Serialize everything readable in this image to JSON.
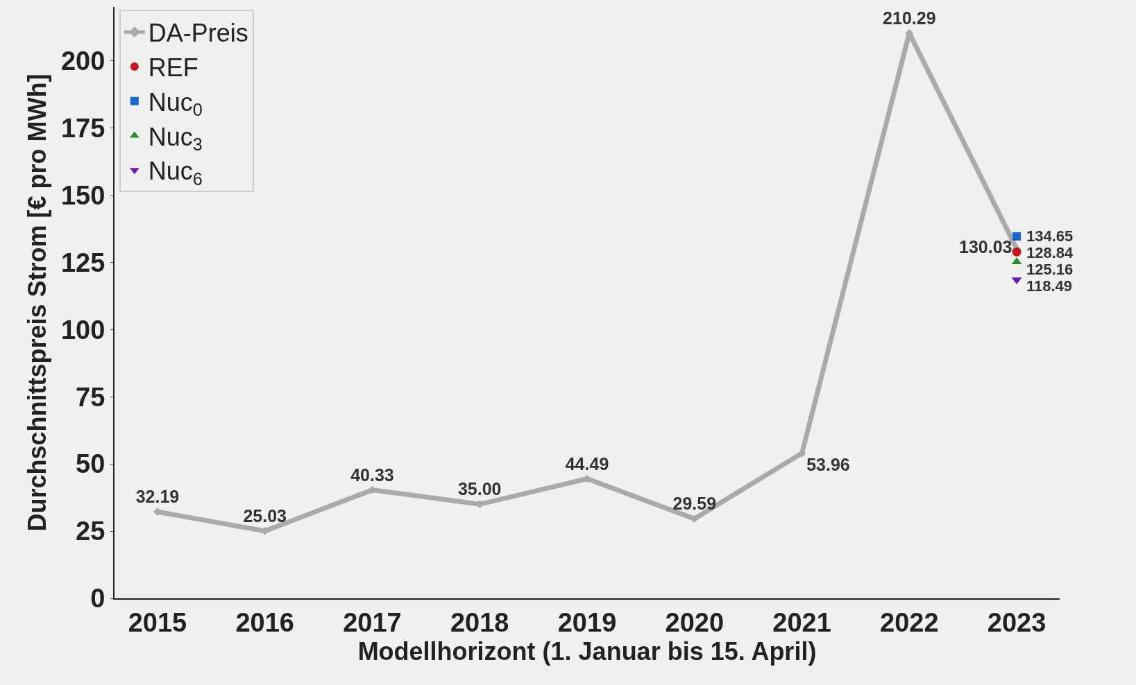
{
  "chart_data": {
    "type": "line",
    "xlabel": "Modellhorizont (1. Januar bis 15. April)",
    "ylabel": "Durchschnittspreis Strom [€ pro MWh]",
    "categories": [
      "2015",
      "2016",
      "2017",
      "2018",
      "2019",
      "2020",
      "2021",
      "2022",
      "2023"
    ],
    "series": [
      {
        "name": "DA-Preis",
        "color": "#aaaaaa",
        "marker": "diamond",
        "values": [
          32.19,
          25.03,
          40.33,
          35.0,
          44.49,
          29.59,
          53.96,
          210.29,
          130.03
        ],
        "value_labels": [
          "32.19",
          "25.03",
          "40.33",
          "35.00",
          "44.49",
          "29.59",
          "53.96",
          "210.29",
          "130.03"
        ]
      },
      {
        "name": "REF",
        "type": "scatter",
        "color": "#c4161c",
        "marker": "circle",
        "values": [
          null,
          null,
          null,
          null,
          null,
          null,
          null,
          null,
          128.84
        ]
      },
      {
        "name": "Nuc$_{0}$",
        "type": "scatter",
        "color": "#1b66c9",
        "marker": "square",
        "values": [
          null,
          null,
          null,
          null,
          null,
          null,
          null,
          null,
          134.65
        ]
      },
      {
        "name": "Nuc$_{3}$",
        "type": "scatter",
        "color": "#2a8a2e",
        "marker": "triangle",
        "values": [
          null,
          null,
          null,
          null,
          null,
          null,
          null,
          null,
          125.16
        ]
      },
      {
        "name": "Nuc$_{6}$",
        "type": "scatter",
        "color": "#6a1ea8",
        "marker": "triangle-down",
        "values": [
          null,
          null,
          null,
          null,
          null,
          null,
          null,
          null,
          118.49
        ]
      }
    ],
    "data_labels": true,
    "ylim": [
      0,
      220
    ],
    "yticks": [
      0,
      25,
      50,
      75,
      100,
      125,
      150,
      175,
      200
    ],
    "grid": false,
    "legend": "top left"
  }
}
